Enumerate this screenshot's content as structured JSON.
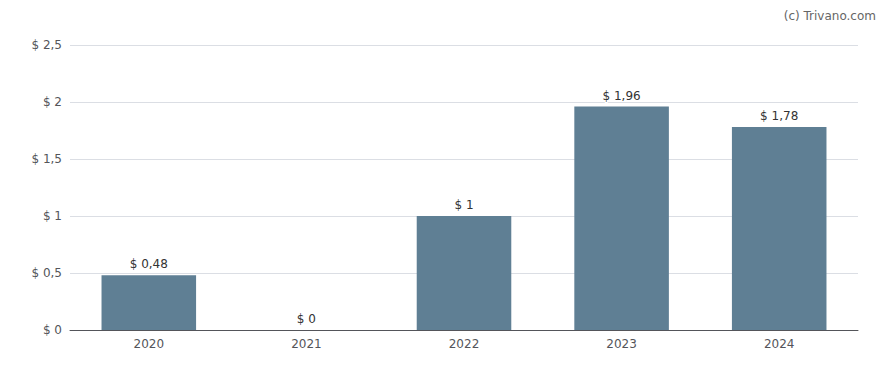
{
  "chart_data": {
    "type": "bar",
    "annotation": "(c) Trivano.com",
    "categories": [
      "2020",
      "2021",
      "2022",
      "2023",
      "2024"
    ],
    "values": [
      0.48,
      0.0,
      1.0,
      1.96,
      1.78
    ],
    "value_labels": [
      "$ 0,48",
      "$ 0",
      "$ 1",
      "$ 1,96",
      "$ 1,78"
    ],
    "data_labels": true,
    "color": "#5f7f94",
    "ylim": [
      0,
      2.5
    ],
    "yticks": [
      {
        "value": 0,
        "label": "$ 0"
      },
      {
        "value": 0.5,
        "label": "$ 0,5"
      },
      {
        "value": 1.0,
        "label": "$ 1"
      },
      {
        "value": 1.5,
        "label": "$ 1,5"
      },
      {
        "value": 2.0,
        "label": "$ 2"
      },
      {
        "value": 2.5,
        "label": "$ 2,5"
      }
    ],
    "grid": true
  }
}
